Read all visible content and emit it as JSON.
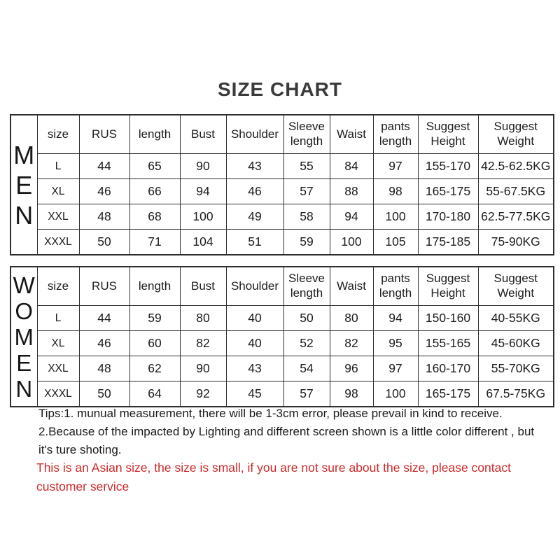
{
  "title": "SIZE CHART",
  "columns": [
    "size",
    "RUS",
    "length",
    "Bust",
    "Shoulder",
    "Sleeve length",
    "Waist",
    "pants length",
    "Suggest Height",
    "Suggest Weight"
  ],
  "tables": [
    {
      "label": "MEN",
      "rows": [
        [
          "L",
          44,
          65,
          90,
          43,
          55,
          84,
          97,
          "155-170",
          "42.5-62.5KG"
        ],
        [
          "XL",
          46,
          66,
          94,
          46,
          57,
          88,
          98,
          "165-175",
          "55-67.5KG"
        ],
        [
          "XXL",
          48,
          68,
          100,
          49,
          58,
          94,
          100,
          "170-180",
          "62.5-77.5KG"
        ],
        [
          "XXXL",
          50,
          71,
          104,
          51,
          59,
          100,
          105,
          "175-185",
          "75-90KG"
        ]
      ]
    },
    {
      "label": "WOMEN",
      "rows": [
        [
          "L",
          44,
          59,
          80,
          40,
          50,
          80,
          94,
          "150-160",
          "40-55KG"
        ],
        [
          "XL",
          46,
          60,
          82,
          40,
          52,
          82,
          95,
          "155-165",
          "45-60KG"
        ],
        [
          "XXL",
          48,
          62,
          90,
          43,
          54,
          96,
          97,
          "160-170",
          "55-70KG"
        ],
        [
          "XXXL",
          50,
          64,
          92,
          45,
          57,
          98,
          100,
          "165-175",
          "67.5-75KG"
        ]
      ]
    }
  ],
  "notes": {
    "tip1": "Tips:1. munual measurement, there will be 1-3cm error, please prevail in kind to receive.",
    "tip2": "2.Because of the impacted by Lighting and different screen shown is a little color different , but it's ture shoting.",
    "warning": "This is an Asian size, the size is small, if you are not sure about the size, please contact customer service"
  },
  "colors": {
    "warning_red": "#cc2a2a",
    "text": "#1c1c1c",
    "border": "#2e2e2e",
    "title": "#3a3a3a"
  }
}
